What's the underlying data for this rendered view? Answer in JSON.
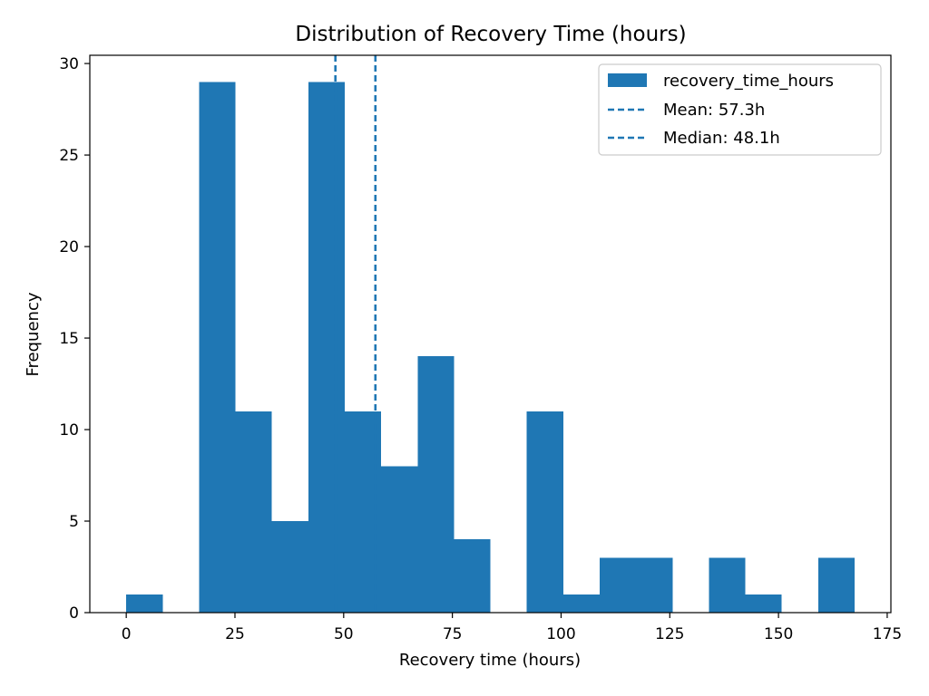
{
  "chart_data": {
    "type": "histogram",
    "title": "Distribution of Recovery Time (hours)",
    "xlabel": "Recovery time (hours)",
    "ylabel": "Frequency",
    "xlim": [
      -8.38,
      175.85
    ],
    "ylim": [
      0,
      30.45
    ],
    "x_ticks": [
      0,
      25,
      50,
      75,
      100,
      125,
      150,
      175
    ],
    "y_ticks": [
      0,
      5,
      10,
      15,
      20,
      25,
      30
    ],
    "bin_start": 0.0,
    "bin_width": 8.375,
    "counts": [
      1,
      0,
      29,
      11,
      5,
      29,
      11,
      8,
      14,
      4,
      0,
      11,
      1,
      3,
      3,
      0,
      3,
      1,
      0,
      3
    ],
    "series_name": "recovery_time_hours",
    "bar_color": "#1f77b4",
    "reference_lines": [
      {
        "label": "Mean: 57.3h",
        "value": 57.3,
        "color": "#1f77b4",
        "style": "dashed"
      },
      {
        "label": "Median: 48.1h",
        "value": 48.1,
        "color": "#1f77b4",
        "style": "dashed"
      }
    ],
    "legend_position": "top-right",
    "grid": false
  }
}
